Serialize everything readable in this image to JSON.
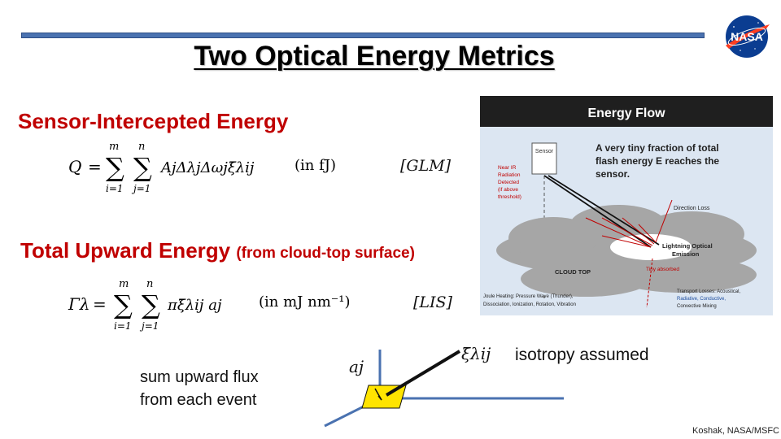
{
  "slide": {
    "title": "Two Optical Energy Metrics",
    "heading1": "Sensor-Intercepted Energy",
    "heading2": "Total Upward Energy",
    "heading2_note": "(from cloud-top surface)",
    "eq1": {
      "lhs": "Q",
      "unit": "(in fJ)",
      "tag": "[GLM]",
      "sum_upper": [
        "m",
        "n"
      ],
      "sum_lower": [
        "i=1",
        "j=1"
      ],
      "term": "AjΔλjΔωjξ̄λij"
    },
    "eq2": {
      "lhs": "Γλ",
      "unit": "(in mJ nm⁻¹)",
      "tag": "[LIS]",
      "sum_upper": [
        "m",
        "n"
      ],
      "sum_lower": [
        "i=1",
        "j=1"
      ],
      "term": "πξ̄λij aj"
    },
    "sum_text_line1": "sum upward flux",
    "sum_text_line2": "from each event",
    "diagram_aj": "aj",
    "diagram_xi": "ξ̄λij",
    "isotropy": "isotropy assumed",
    "credit": "Koshak, NASA/MSFC",
    "logo_text": "NASA"
  },
  "energy_flow": {
    "title": "Energy Flow",
    "caption_line1": "A very tiny fraction of total",
    "caption_line2": "flash energy E reaches the",
    "caption_line3": "sensor.",
    "sensor": "Sensor",
    "near_ir_line1": "Near IR",
    "near_ir_line2": "Radiation",
    "near_ir_line3": "Detected",
    "near_ir_line4": "(if above",
    "near_ir_line5": "threshold)",
    "direction_loss": "Direction Loss",
    "lightning_line1": "Lightning Optical",
    "lightning_line2": "Emission",
    "cloud_top": "CLOUD TOP",
    "tiny_absorbed": "Tiny absorbed",
    "joule_line1": "Joule Heating: Pressure Wave (Thunder),",
    "joule_line2": "Dissociation, Ionization, Rotation, Vibration",
    "transport_line1": "Transport Losses: Acoustical,",
    "transport_line2": "Radiative, Conductive,",
    "transport_line3": "Convective Mixing"
  },
  "colors": {
    "accent_bar": "#4a72b0",
    "heading_red": "#c00000",
    "panel_header": "#1f1f1f",
    "panel_bg": "#dce6f2",
    "patch_yellow": "#ffe400",
    "axis_blue": "#4a72b0"
  }
}
